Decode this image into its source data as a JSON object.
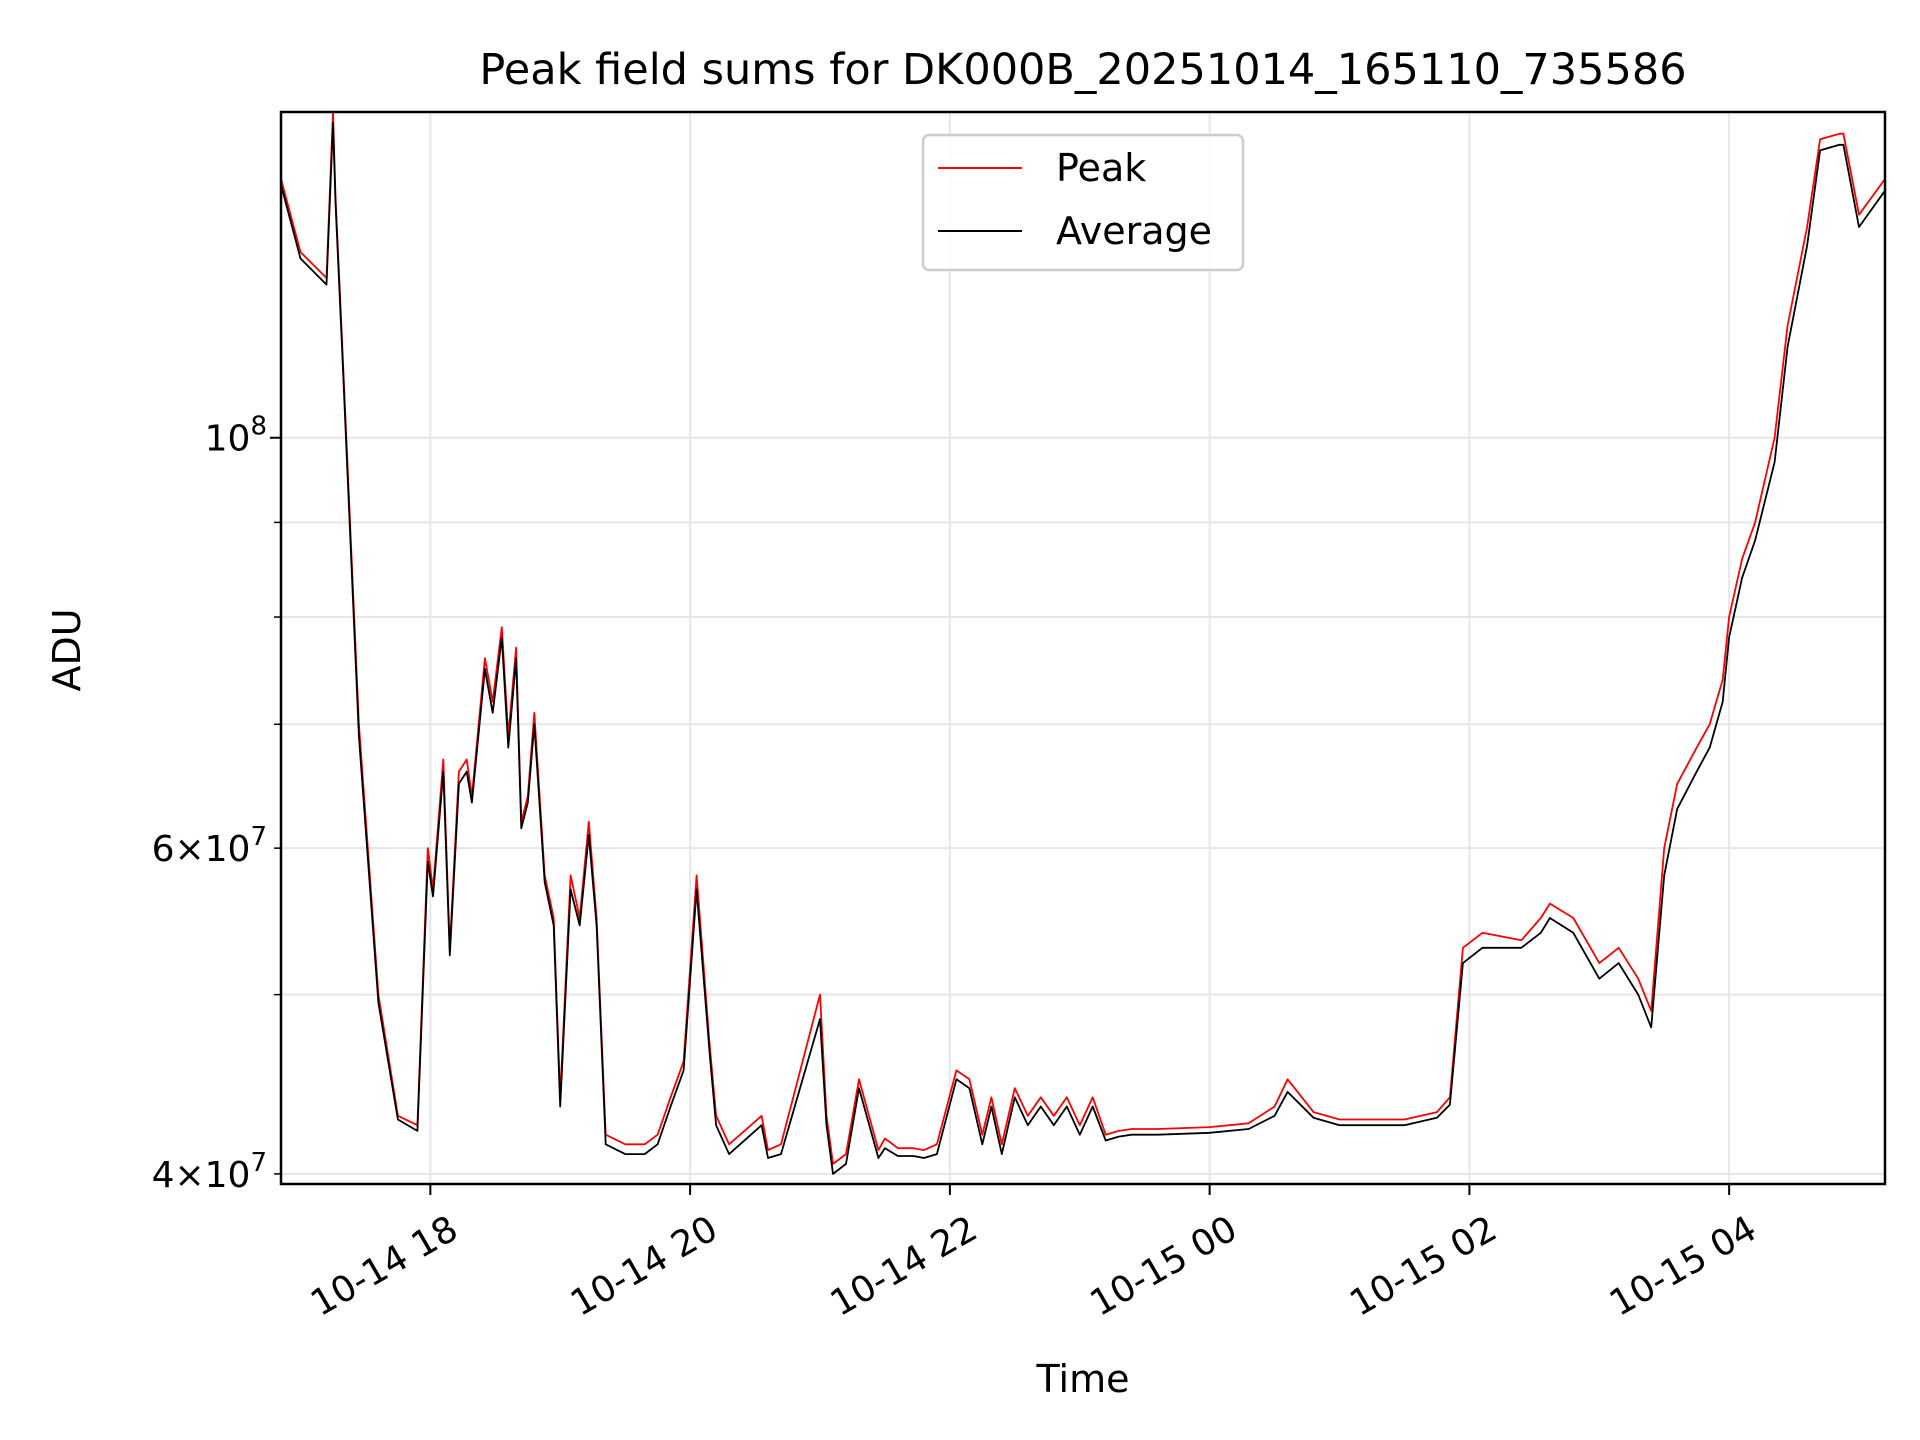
{
  "chart_data": {
    "type": "line",
    "title": "Peak field sums for DK000B_20251014_165110_735586",
    "xlabel": "Time",
    "ylabel": "ADU",
    "yscale": "log",
    "ylim": [
      39500000,
      150000000
    ],
    "xlim_hours": [
      16.85,
      5.2
    ],
    "x_ticks": [
      {
        "label": "10-14 18",
        "hour": 18
      },
      {
        "label": "10-14 20",
        "hour": 20
      },
      {
        "label": "10-14 22",
        "hour": 22
      },
      {
        "label": "10-15 00",
        "hour": 24
      },
      {
        "label": "10-15 02",
        "hour": 26
      },
      {
        "label": "10-15 04",
        "hour": 28
      }
    ],
    "y_major_ticks": [
      {
        "label_base": "10",
        "label_exp": "8",
        "value": 100000000
      }
    ],
    "y_minor_ticks": [
      {
        "mant": "4",
        "exp": "7",
        "value": 40000000
      },
      {
        "mant": "6",
        "exp": "7",
        "value": 60000000
      }
    ],
    "y_minor_gridlines": [
      50000000,
      70000000,
      80000000,
      90000000
    ],
    "grid": true,
    "legend_position": "top-center",
    "series": [
      {
        "name": "Peak",
        "color": "#ff0000",
        "hours": [
          16.85,
          17.0,
          17.2,
          17.25,
          17.27,
          17.32,
          17.45,
          17.6,
          17.75,
          17.9,
          17.98,
          18.02,
          18.1,
          18.15,
          18.22,
          18.28,
          18.32,
          18.42,
          18.48,
          18.55,
          18.6,
          18.66,
          18.7,
          18.75,
          18.8,
          18.88,
          18.95,
          19.0,
          19.08,
          19.15,
          19.22,
          19.28,
          19.35,
          19.5,
          19.65,
          19.75,
          19.85,
          19.95,
          20.05,
          20.15,
          20.2,
          20.3,
          20.55,
          20.6,
          20.7,
          21.0,
          21.05,
          21.1,
          21.2,
          21.3,
          21.45,
          21.5,
          21.6,
          21.72,
          21.8,
          21.9,
          22.05,
          22.15,
          22.25,
          22.32,
          22.4,
          22.5,
          22.6,
          22.7,
          22.8,
          22.9,
          23.0,
          23.1,
          23.2,
          23.3,
          23.4,
          23.5,
          23.6,
          24.0,
          24.3,
          24.5,
          24.6,
          24.8,
          25.0,
          25.5,
          25.75,
          25.85,
          25.95,
          26.1,
          26.4,
          26.55,
          26.62,
          26.8,
          27.0,
          27.15,
          27.3,
          27.4,
          27.5,
          27.6,
          27.75,
          27.85,
          27.95,
          28.0,
          28.1,
          28.2,
          28.35,
          28.45,
          28.6,
          28.7,
          28.85,
          28.88,
          29.0,
          29.2
        ],
        "values": [
          138000000,
          126000000,
          122000000,
          150000000,
          135000000,
          113000000,
          70000000,
          50000000,
          43000000,
          42500000,
          60000000,
          57000000,
          67000000,
          53000000,
          66000000,
          67000000,
          64000000,
          76000000,
          72000000,
          79000000,
          69000000,
          77000000,
          62000000,
          64000000,
          71000000,
          58000000,
          55000000,
          44000000,
          58000000,
          55000000,
          62000000,
          55000000,
          42000000,
          41500000,
          41500000,
          42000000,
          44000000,
          46000000,
          58000000,
          47000000,
          43000000,
          41500000,
          43000000,
          41200000,
          41500000,
          50000000,
          43000000,
          40500000,
          41000000,
          45000000,
          41200000,
          41800000,
          41300000,
          41300000,
          41200000,
          41500000,
          45500000,
          45000000,
          42000000,
          44000000,
          41500000,
          44500000,
          43000000,
          44000000,
          43000000,
          44000000,
          42500000,
          44000000,
          42000000,
          42200000,
          42300000,
          42300000,
          42300000,
          42400000,
          42600000,
          43500000,
          45000000,
          43200000,
          42800000,
          42800000,
          43200000,
          44000000,
          53000000,
          54000000,
          53500000,
          55000000,
          56000000,
          55000000,
          52000000,
          53000000,
          51000000,
          49000000,
          60000000,
          65000000,
          68000000,
          70000000,
          74000000,
          80000000,
          86000000,
          90000000,
          100000000,
          115000000,
          130000000,
          145000000,
          146000000,
          146000000,
          132000000,
          138000000
        ]
      },
      {
        "name": "Average",
        "color": "#000000",
        "hours": [
          16.85,
          17.0,
          17.2,
          17.25,
          17.27,
          17.32,
          17.45,
          17.6,
          17.75,
          17.9,
          17.98,
          18.02,
          18.1,
          18.15,
          18.22,
          18.28,
          18.32,
          18.42,
          18.48,
          18.55,
          18.6,
          18.66,
          18.7,
          18.75,
          18.8,
          18.88,
          18.95,
          19.0,
          19.08,
          19.15,
          19.22,
          19.28,
          19.35,
          19.5,
          19.65,
          19.75,
          19.85,
          19.95,
          20.05,
          20.15,
          20.2,
          20.3,
          20.55,
          20.6,
          20.7,
          21.0,
          21.05,
          21.1,
          21.2,
          21.3,
          21.45,
          21.5,
          21.6,
          21.72,
          21.8,
          21.9,
          22.05,
          22.15,
          22.25,
          22.32,
          22.4,
          22.5,
          22.6,
          22.7,
          22.8,
          22.9,
          23.0,
          23.1,
          23.2,
          23.3,
          23.4,
          23.5,
          23.6,
          24.0,
          24.3,
          24.5,
          24.6,
          24.8,
          25.0,
          25.5,
          25.75,
          25.85,
          25.95,
          26.1,
          26.4,
          26.55,
          26.62,
          26.8,
          27.0,
          27.15,
          27.3,
          27.4,
          27.5,
          27.6,
          27.75,
          27.85,
          27.95,
          28.0,
          28.1,
          28.2,
          28.35,
          28.45,
          28.6,
          28.7,
          28.85,
          28.88,
          29.0,
          29.2
        ],
        "values": [
          137000000,
          125000000,
          121000000,
          148000000,
          134000000,
          112000000,
          69000000,
          49500000,
          42800000,
          42200000,
          59000000,
          56500000,
          66000000,
          52500000,
          65000000,
          66000000,
          63500000,
          75000000,
          71000000,
          78000000,
          68000000,
          76000000,
          61500000,
          63500000,
          70000000,
          57500000,
          54500000,
          43500000,
          57000000,
          54500000,
          61000000,
          54500000,
          41500000,
          41000000,
          41000000,
          41500000,
          43500000,
          45500000,
          57000000,
          46500000,
          42500000,
          41000000,
          42500000,
          40800000,
          41000000,
          48500000,
          42500000,
          40000000,
          40500000,
          44500000,
          40800000,
          41300000,
          40900000,
          40900000,
          40800000,
          41000000,
          45000000,
          44500000,
          41500000,
          43500000,
          41000000,
          44000000,
          42500000,
          43500000,
          42500000,
          43500000,
          42000000,
          43500000,
          41700000,
          41900000,
          42000000,
          42000000,
          42000000,
          42100000,
          42300000,
          43000000,
          44300000,
          42900000,
          42500000,
          42500000,
          42900000,
          43600000,
          52000000,
          53000000,
          53000000,
          54000000,
          55000000,
          54000000,
          51000000,
          52000000,
          50000000,
          48000000,
          58000000,
          63000000,
          66000000,
          68000000,
          72000000,
          78000000,
          84000000,
          88000000,
          97000000,
          112000000,
          127000000,
          143000000,
          144000000,
          144000000,
          130000000,
          136000000
        ]
      }
    ]
  }
}
